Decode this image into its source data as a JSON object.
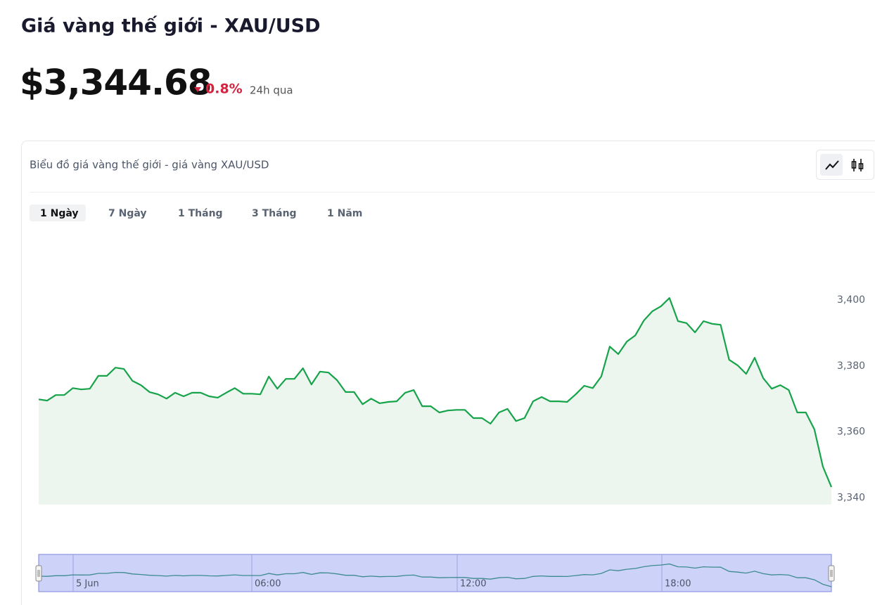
{
  "header": {
    "title": "Giá vàng thế giới - XAU/USD",
    "price": "$3,344.68",
    "change": "0.8%",
    "period": "24h qua"
  },
  "card": {
    "title": "Biểu đồ giá vàng thế giới - giá vàng XAU/USD",
    "tabs": [
      "1 Ngày",
      "7 Ngày",
      "1 Tháng",
      "3 Tháng",
      "1 Năm"
    ],
    "active_tab": 0
  },
  "chart_data": {
    "type": "line",
    "color": "#16a34a",
    "values": [
      3369.9,
      3369.5,
      3371.2,
      3371.2,
      3373.3,
      3372.9,
      3373.1,
      3377.0,
      3377.0,
      3379.5,
      3379.1,
      3375.5,
      3374.2,
      3372.1,
      3371.4,
      3370.1,
      3371.9,
      3370.8,
      3371.9,
      3371.9,
      3370.8,
      3370.4,
      3371.9,
      3373.3,
      3371.6,
      3371.6,
      3371.4,
      3376.8,
      3373.1,
      3376.1,
      3376.1,
      3379.3,
      3374.4,
      3378.3,
      3378.0,
      3375.7,
      3372.1,
      3372.1,
      3368.4,
      3370.1,
      3368.7,
      3369.1,
      3369.3,
      3371.9,
      3372.7,
      3367.8,
      3367.8,
      3365.9,
      3366.5,
      3366.7,
      3366.7,
      3364.2,
      3364.2,
      3362.5,
      3365.9,
      3367.0,
      3363.3,
      3364.2,
      3369.3,
      3370.6,
      3369.3,
      3369.3,
      3369.1,
      3371.4,
      3374.0,
      3373.3,
      3376.8,
      3385.9,
      3383.6,
      3387.4,
      3389.3,
      3393.8,
      3396.6,
      3398.1,
      3400.6,
      3393.6,
      3393.0,
      3390.2,
      3393.6,
      3392.8,
      3392.5,
      3381.9,
      3380.2,
      3377.6,
      3382.5,
      3376.3,
      3373.1,
      3374.2,
      3372.7,
      3365.9,
      3365.9,
      3360.8,
      3349.5,
      3343.3
    ],
    "ylim": [
      3338,
      3423
    ],
    "yticks": [
      {
        "value": 3340,
        "label": "3,340"
      },
      {
        "value": 3360,
        "label": "3,360"
      },
      {
        "value": 3380,
        "label": "3,380"
      },
      {
        "value": 3400,
        "label": "3,400"
      }
    ],
    "navigator_labels": [
      "5 Jun",
      "06:00",
      "12:00",
      "18:00"
    ]
  }
}
